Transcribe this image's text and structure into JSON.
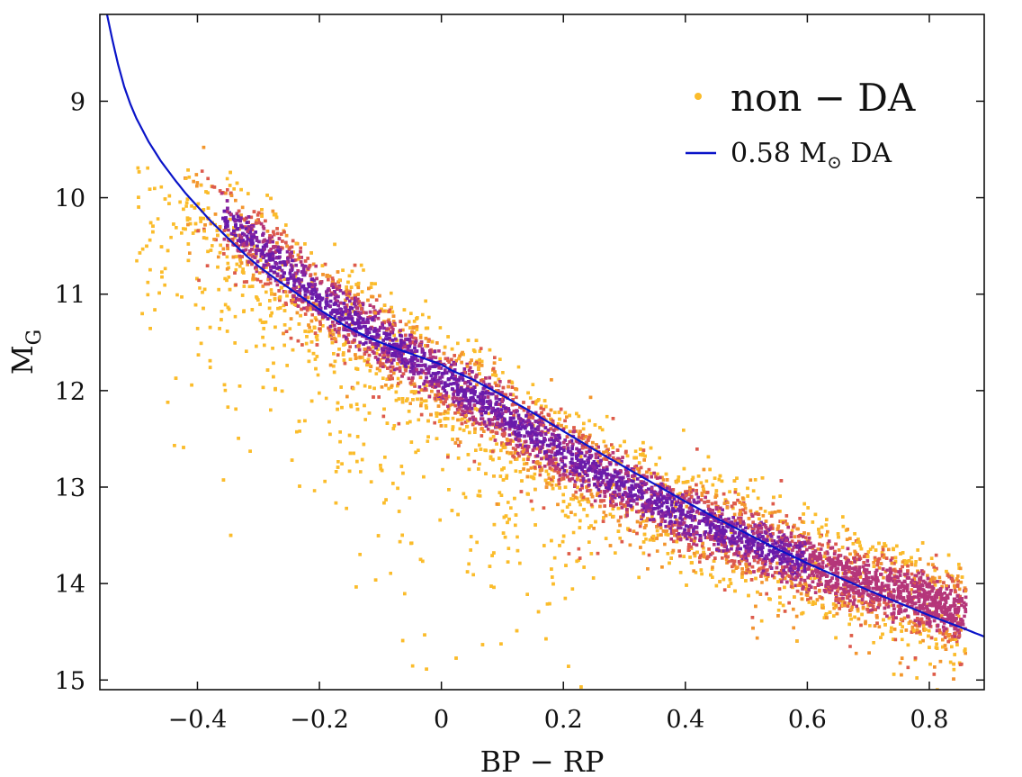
{
  "chart_data": {
    "type": "scatter",
    "title": "",
    "xlabel": "BP − RP",
    "ylabel_main": "M",
    "ylabel_sub": "G",
    "xlim": [
      -0.56,
      0.89
    ],
    "ylim": [
      15.1,
      8.1
    ],
    "y_inverted": true,
    "grid": false,
    "x_ticks": [
      -0.4,
      -0.2,
      0,
      0.2,
      0.4,
      0.6,
      0.8
    ],
    "x_tick_labels": [
      "−0.4",
      "−0.2",
      "0",
      "0.2",
      "0.4",
      "0.6",
      "0.8"
    ],
    "y_ticks": [
      9,
      10,
      11,
      12,
      13,
      14,
      15
    ],
    "y_tick_labels": [
      "9",
      "10",
      "11",
      "12",
      "13",
      "14",
      "15"
    ],
    "legend_position": "top-right",
    "series": [
      {
        "name": "non − DA",
        "kind": "scatter",
        "color": "#fbbc2b",
        "density_colors": [
          "#fbbc2b",
          "#f3952e",
          "#dd5a4e",
          "#b5367a",
          "#8624a1",
          "#6a1bab"
        ],
        "n_points": 11000,
        "approx_ridge": [
          [
            -0.45,
            9.7
          ],
          [
            -0.3,
            10.5
          ],
          [
            -0.2,
            11.05
          ],
          [
            -0.1,
            11.45
          ],
          [
            0.0,
            11.85
          ],
          [
            0.1,
            12.25
          ],
          [
            0.2,
            12.65
          ],
          [
            0.3,
            13.0
          ],
          [
            0.4,
            13.3
          ],
          [
            0.5,
            13.55
          ],
          [
            0.6,
            13.8
          ],
          [
            0.7,
            14.0
          ],
          [
            0.8,
            14.2
          ],
          [
            0.85,
            14.3
          ]
        ]
      },
      {
        "name": "0.58 M☉ DA",
        "legend_main": "0.58 M",
        "legend_sub": "⊙",
        "legend_suffix": " DA",
        "kind": "line",
        "color": "#0a14c8",
        "x": [
          -0.55,
          -0.54,
          -0.53,
          -0.52,
          -0.51,
          -0.5,
          -0.48,
          -0.46,
          -0.44,
          -0.42,
          -0.4,
          -0.38,
          -0.35,
          -0.32,
          -0.3,
          -0.27,
          -0.24,
          -0.2,
          -0.16,
          -0.12,
          -0.08,
          -0.04,
          0.0,
          0.02,
          0.05,
          0.1,
          0.15,
          0.2,
          0.25,
          0.3,
          0.35,
          0.4,
          0.45,
          0.5,
          0.55,
          0.6,
          0.65,
          0.7,
          0.75,
          0.8,
          0.85,
          0.89
        ],
        "y": [
          8.05,
          8.35,
          8.62,
          8.85,
          9.03,
          9.18,
          9.42,
          9.62,
          9.79,
          9.95,
          10.09,
          10.23,
          10.42,
          10.6,
          10.71,
          10.85,
          10.98,
          11.16,
          11.32,
          11.45,
          11.55,
          11.64,
          11.73,
          11.8,
          11.88,
          12.05,
          12.23,
          12.42,
          12.61,
          12.79,
          12.97,
          13.15,
          13.32,
          13.48,
          13.64,
          13.79,
          13.93,
          14.07,
          14.2,
          14.33,
          14.45,
          14.55
        ]
      }
    ]
  }
}
